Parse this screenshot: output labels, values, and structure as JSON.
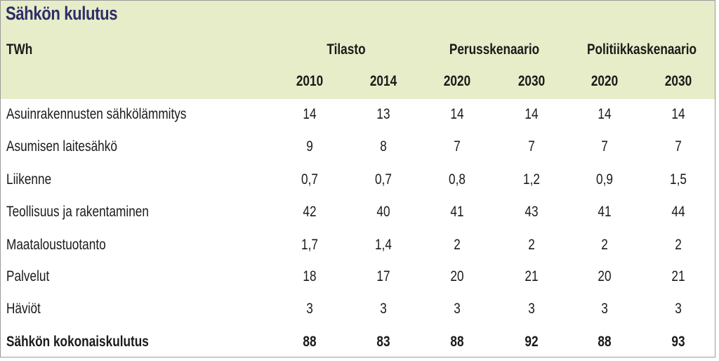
{
  "title": "Sähkön kulutus",
  "unit": "TWh",
  "groups": [
    "Tilasto",
    "Perusskenaario",
    "Politiikkaskenaario"
  ],
  "years": [
    "2010",
    "2014",
    "2020",
    "2030",
    "2020",
    "2030"
  ],
  "rows": [
    {
      "label": "Asuinrakennusten sähkölämmitys",
      "values": [
        "14",
        "13",
        "14",
        "14",
        "14",
        "14"
      ]
    },
    {
      "label": "Asumisen laitesähkö",
      "values": [
        "9",
        "8",
        "7",
        "7",
        "7",
        "7"
      ]
    },
    {
      "label": "Liikenne",
      "values": [
        "0,7",
        "0,7",
        "0,8",
        "1,2",
        "0,9",
        "1,5"
      ]
    },
    {
      "label": "Teollisuus ja rakentaminen",
      "values": [
        "42",
        "40",
        "41",
        "43",
        "41",
        "44"
      ]
    },
    {
      "label": "Maataloustuotanto",
      "values": [
        "1,7",
        "1,4",
        "2",
        "2",
        "2",
        "2"
      ]
    },
    {
      "label": "Palvelut",
      "values": [
        "18",
        "17",
        "20",
        "21",
        "20",
        "21"
      ]
    },
    {
      "label": "Häviöt",
      "values": [
        "3",
        "3",
        "3",
        "3",
        "3",
        "3"
      ]
    },
    {
      "label": "Sähkön kokonaiskulutus",
      "values": [
        "88",
        "83",
        "88",
        "92",
        "88",
        "93"
      ]
    }
  ],
  "colors": {
    "header_bg": "#e6edc8",
    "title": "#2e2e6a"
  }
}
